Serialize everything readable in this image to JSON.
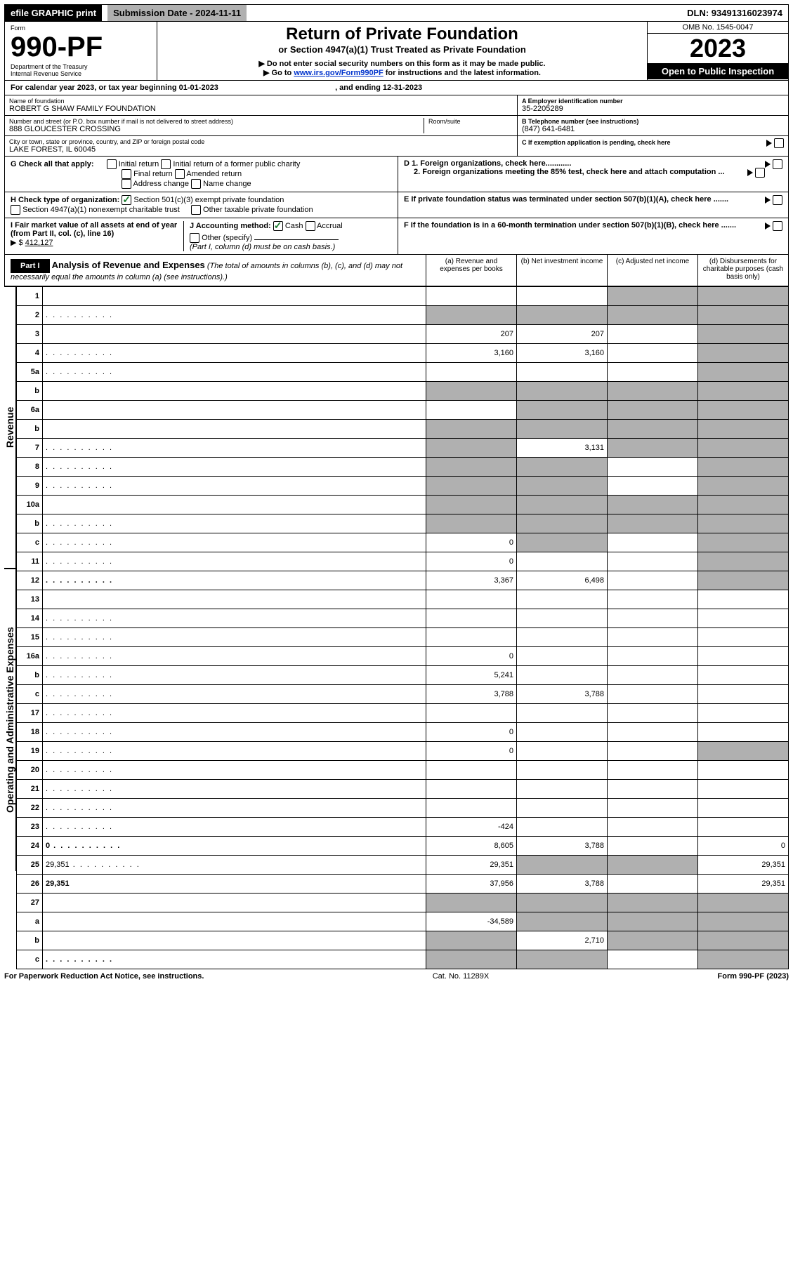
{
  "topbar": {
    "efile": "efile GRAPHIC print",
    "submission": "Submission Date - 2024-11-11",
    "dln": "DLN: 93491316023974"
  },
  "header": {
    "form_label": "Form",
    "form_no": "990-PF",
    "dept": "Department of the Treasury",
    "irs": "Internal Revenue Service",
    "title": "Return of Private Foundation",
    "subtitle": "or Section 4947(a)(1) Trust Treated as Private Foundation",
    "warn1": "▶ Do not enter social security numbers on this form as it may be made public.",
    "warn2_pre": "▶ Go to ",
    "warn2_link": "www.irs.gov/Form990PF",
    "warn2_post": " for instructions and the latest information.",
    "omb": "OMB No. 1545-0047",
    "year": "2023",
    "open": "Open to Public Inspection"
  },
  "calyear": {
    "pre": "For calendar year 2023, or tax year beginning ",
    "begin": "01-01-2023",
    "mid": ", and ending ",
    "end": "12-31-2023"
  },
  "name": {
    "name_lbl": "Name of foundation",
    "name_val": "ROBERT G SHAW FAMILY FOUNDATION",
    "addr_lbl": "Number and street (or P.O. box number if mail is not delivered to street address)",
    "addr_val": "888 GLOUCESTER CROSSING",
    "room_lbl": "Room/suite",
    "city_lbl": "City or town, state or province, country, and ZIP or foreign postal code",
    "city_val": "LAKE FOREST, IL  60045",
    "a_lbl": "A Employer identification number",
    "a_val": "35-2205289",
    "b_lbl": "B Telephone number (see instructions)",
    "b_val": "(847) 641-6481",
    "c_lbl": "C If exemption application is pending, check here"
  },
  "g": {
    "label": "G Check all that apply:",
    "initial": "Initial return",
    "final": "Final return",
    "addrchg": "Address change",
    "initial_former": "Initial return of a former public charity",
    "amended": "Amended return",
    "namechg": "Name change"
  },
  "d": {
    "d1": "D 1. Foreign organizations, check here............",
    "d2": "2. Foreign organizations meeting the 85% test, check here and attach computation ..."
  },
  "h": {
    "label": "H Check type of organization:",
    "s501": "Section 501(c)(3) exempt private foundation",
    "s4947": "Section 4947(a)(1) nonexempt charitable trust",
    "other": "Other taxable private foundation"
  },
  "e": "E If private foundation status was terminated under section 507(b)(1)(A), check here .......",
  "i": {
    "label": "I Fair market value of all assets at end of year (from Part II, col. (c), line 16)",
    "sym": "▶ $",
    "val": "412,127"
  },
  "j": {
    "label": "J Accounting method:",
    "cash": "Cash",
    "accrual": "Accrual",
    "other": "Other (specify)",
    "note": "(Part I, column (d) must be on cash basis.)"
  },
  "f": "F If the foundation is in a 60-month termination under section 507(b)(1)(B), check here .......",
  "part1": {
    "label": "Part I",
    "title": "Analysis of Revenue and Expenses",
    "title_note": "(The total of amounts in columns (b), (c), and (d) may not necessarily equal the amounts in column (a) (see instructions).)",
    "col_a": "(a) Revenue and expenses per books",
    "col_b": "(b) Net investment income",
    "col_c": "(c) Adjusted net income",
    "col_d": "(d) Disbursements for charitable purposes (cash basis only)"
  },
  "side": {
    "rev": "Revenue",
    "exp": "Operating and Administrative Expenses"
  },
  "rows": [
    {
      "n": "1",
      "d": "",
      "a": "",
      "b": "",
      "c": "",
      "cg": true,
      "dg": true
    },
    {
      "n": "2",
      "d": "",
      "dots": true,
      "a": "",
      "b": "",
      "c": "",
      "ag": true,
      "bg": true,
      "cg": true,
      "dg": true
    },
    {
      "n": "3",
      "d": "",
      "a": "207",
      "b": "207",
      "c": "",
      "dg": true
    },
    {
      "n": "4",
      "d": "",
      "dots": true,
      "a": "3,160",
      "b": "3,160",
      "c": "",
      "dg": true
    },
    {
      "n": "5a",
      "d": "",
      "dots": true,
      "a": "",
      "b": "",
      "c": "",
      "dg": true
    },
    {
      "n": "b",
      "d": "",
      "a": "",
      "b": "",
      "c": "",
      "ag": true,
      "bg": true,
      "cg": true,
      "dg": true
    },
    {
      "n": "6a",
      "d": "",
      "a": "",
      "b": "",
      "c": "",
      "bg": true,
      "cg": true,
      "dg": true
    },
    {
      "n": "b",
      "d": "",
      "a": "",
      "b": "",
      "c": "",
      "ag": true,
      "bg": true,
      "cg": true,
      "dg": true
    },
    {
      "n": "7",
      "d": "",
      "dots": true,
      "a": "",
      "b": "3,131",
      "c": "",
      "ag": true,
      "cg": true,
      "dg": true
    },
    {
      "n": "8",
      "d": "",
      "dots": true,
      "a": "",
      "b": "",
      "c": "",
      "ag": true,
      "bg": true,
      "dg": true
    },
    {
      "n": "9",
      "d": "",
      "dots": true,
      "a": "",
      "b": "",
      "c": "",
      "ag": true,
      "bg": true,
      "dg": true
    },
    {
      "n": "10a",
      "d": "",
      "a": "",
      "b": "",
      "c": "",
      "ag": true,
      "bg": true,
      "cg": true,
      "dg": true
    },
    {
      "n": "b",
      "d": "",
      "dots": true,
      "a": "",
      "b": "",
      "c": "",
      "ag": true,
      "bg": true,
      "cg": true,
      "dg": true
    },
    {
      "n": "c",
      "d": "",
      "dots": true,
      "a": "0",
      "b": "",
      "c": "",
      "bg": true,
      "dg": true
    },
    {
      "n": "11",
      "d": "",
      "dots": true,
      "a": "0",
      "b": "",
      "c": "",
      "dg": true
    },
    {
      "n": "12",
      "d": "",
      "dots": true,
      "bold": true,
      "a": "3,367",
      "b": "6,498",
      "c": "",
      "dg": true
    },
    {
      "n": "13",
      "d": "",
      "a": "",
      "b": "",
      "c": ""
    },
    {
      "n": "14",
      "d": "",
      "dots": true,
      "a": "",
      "b": "",
      "c": ""
    },
    {
      "n": "15",
      "d": "",
      "dots": true,
      "a": "",
      "b": "",
      "c": ""
    },
    {
      "n": "16a",
      "d": "",
      "dots": true,
      "a": "0",
      "b": "",
      "c": ""
    },
    {
      "n": "b",
      "d": "",
      "dots": true,
      "a": "5,241",
      "b": "",
      "c": ""
    },
    {
      "n": "c",
      "d": "",
      "dots": true,
      "a": "3,788",
      "b": "3,788",
      "c": ""
    },
    {
      "n": "17",
      "d": "",
      "dots": true,
      "a": "",
      "b": "",
      "c": ""
    },
    {
      "n": "18",
      "d": "",
      "dots": true,
      "a": "0",
      "b": "",
      "c": ""
    },
    {
      "n": "19",
      "d": "",
      "dots": true,
      "a": "0",
      "b": "",
      "c": "",
      "dg": true
    },
    {
      "n": "20",
      "d": "",
      "dots": true,
      "a": "",
      "b": "",
      "c": ""
    },
    {
      "n": "21",
      "d": "",
      "dots": true,
      "a": "",
      "b": "",
      "c": ""
    },
    {
      "n": "22",
      "d": "",
      "dots": true,
      "a": "",
      "b": "",
      "c": ""
    },
    {
      "n": "23",
      "d": "",
      "dots": true,
      "a": "-424",
      "b": "",
      "c": ""
    },
    {
      "n": "24",
      "d": "0",
      "dots": true,
      "bold": true,
      "a": "8,605",
      "b": "3,788",
      "c": ""
    },
    {
      "n": "25",
      "d": "29,351",
      "dots": true,
      "a": "29,351",
      "b": "",
      "c": "",
      "bg": true,
      "cg": true
    },
    {
      "n": "26",
      "d": "29,351",
      "bold": true,
      "a": "37,956",
      "b": "3,788",
      "c": ""
    },
    {
      "n": "27",
      "d": "",
      "a": "",
      "b": "",
      "c": "",
      "ag": true,
      "bg": true,
      "cg": true,
      "dg": true
    },
    {
      "n": "a",
      "d": "",
      "bold": true,
      "a": "-34,589",
      "b": "",
      "c": "",
      "bg": true,
      "cg": true,
      "dg": true
    },
    {
      "n": "b",
      "d": "",
      "bold": true,
      "a": "",
      "b": "2,710",
      "c": "",
      "ag": true,
      "cg": true,
      "dg": true
    },
    {
      "n": "c",
      "d": "",
      "dots": true,
      "bold": true,
      "a": "",
      "b": "",
      "c": "",
      "ag": true,
      "bg": true,
      "dg": true
    }
  ],
  "footer": {
    "left": "For Paperwork Reduction Act Notice, see instructions.",
    "mid": "Cat. No. 11289X",
    "right": "Form 990-PF (2023)"
  }
}
